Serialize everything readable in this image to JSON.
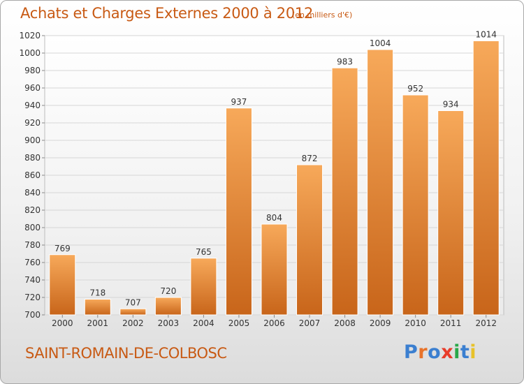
{
  "title": "Achats et Charges Externes 2000 à 2012",
  "unit": "(en milliers d'€)",
  "commune": "SAINT-ROMAIN-DE-COLBOSC",
  "logo": {
    "text": "Proxiti",
    "colors": [
      "#3b7fd0",
      "#e8732a",
      "#3b7fd0",
      "#e83c2a",
      "#2aa84a",
      "#3b7fd0",
      "#e8c22a"
    ]
  },
  "colors": {
    "bar_top": "#f7a95a",
    "bar_bottom": "#c8651a",
    "text_accent": "#c85a14",
    "grid": "#d6d6d6"
  },
  "chart_data": {
    "type": "bar",
    "categories": [
      "2000",
      "2001",
      "2002",
      "2003",
      "2004",
      "2005",
      "2006",
      "2007",
      "2008",
      "2009",
      "2010",
      "2011",
      "2012"
    ],
    "values": [
      769,
      718,
      707,
      720,
      765,
      937,
      804,
      872,
      983,
      1004,
      952,
      934,
      1014
    ],
    "ylim": [
      700,
      1020
    ],
    "yticks": [
      700,
      720,
      740,
      760,
      780,
      800,
      820,
      840,
      860,
      880,
      900,
      920,
      940,
      960,
      980,
      1000,
      1020
    ],
    "grid": true,
    "legend": "none"
  }
}
